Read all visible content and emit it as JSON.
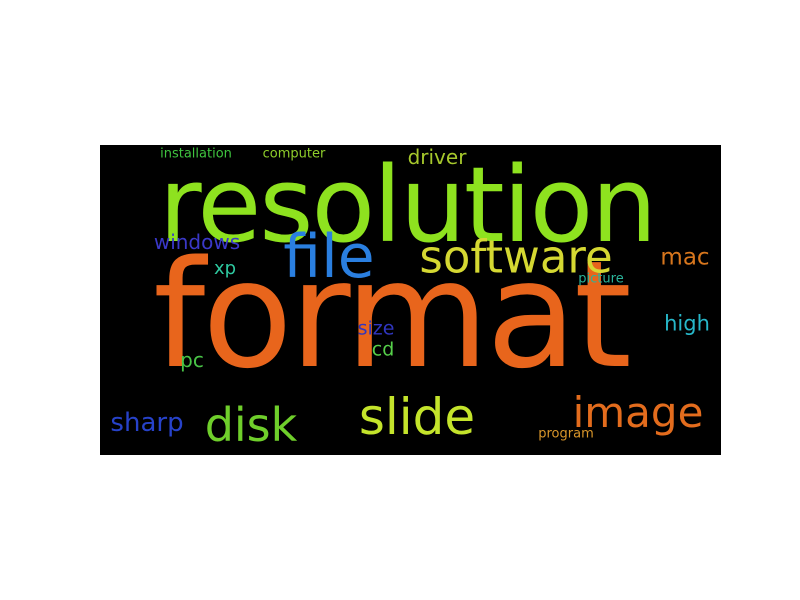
{
  "cloud": {
    "background": "#000000",
    "words": [
      {
        "text": "format",
        "color": "#e8651c"
      },
      {
        "text": "resolution",
        "color": "#8ee21f"
      },
      {
        "text": "file",
        "color": "#2a7fe0"
      },
      {
        "text": "software",
        "color": "#d5d832"
      },
      {
        "text": "image",
        "color": "#e36c1d"
      },
      {
        "text": "slide",
        "color": "#c4e42b"
      },
      {
        "text": "disk",
        "color": "#6fcf2b"
      },
      {
        "text": "sharp",
        "color": "#2742c9"
      },
      {
        "text": "windows",
        "color": "#3a38c8"
      },
      {
        "text": "driver",
        "color": "#a6c82c"
      },
      {
        "text": "mac",
        "color": "#d7761d"
      },
      {
        "text": "high",
        "color": "#27b7c9"
      },
      {
        "text": "size",
        "color": "#3036c0"
      },
      {
        "text": "cd",
        "color": "#56d04a"
      },
      {
        "text": "xp",
        "color": "#2ec9a0"
      },
      {
        "text": "pc",
        "color": "#49c447"
      },
      {
        "text": "picture",
        "color": "#2ab39a"
      },
      {
        "text": "program",
        "color": "#d9962a"
      },
      {
        "text": "installation",
        "color": "#3fc43f"
      },
      {
        "text": "computer",
        "color": "#8fce2b"
      }
    ]
  }
}
